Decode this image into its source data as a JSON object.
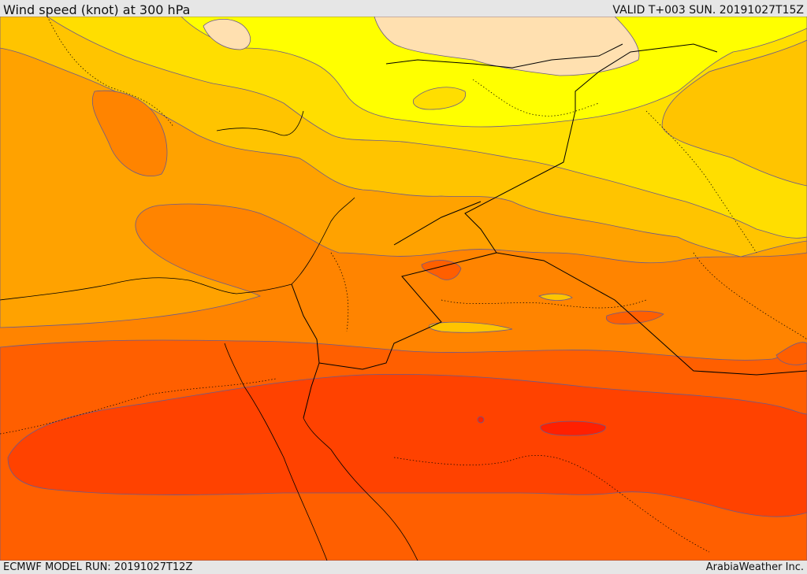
{
  "header": {
    "title": "Wind speed (knot) at 300 hPa",
    "valid": "VALID T+003 SUN. 20191027T15Z"
  },
  "footer": {
    "model_run": "ECMWF MODEL RUN: 20191027T12Z",
    "credit": "ArabiaWeather Inc."
  },
  "colors": {
    "band_yellow": "#ffff00",
    "band_gold": "#ffde00",
    "band_amber": "#ffc400",
    "band_orange_light": "#ffa200",
    "band_orange": "#ff8400",
    "band_orange_red": "#ff5f00",
    "band_red_orange": "#ff4200",
    "band_red": "#ff2000",
    "band_peach": "#ffe0b0",
    "border_line": "#000000",
    "contour_line": "#6b5a8c"
  }
}
